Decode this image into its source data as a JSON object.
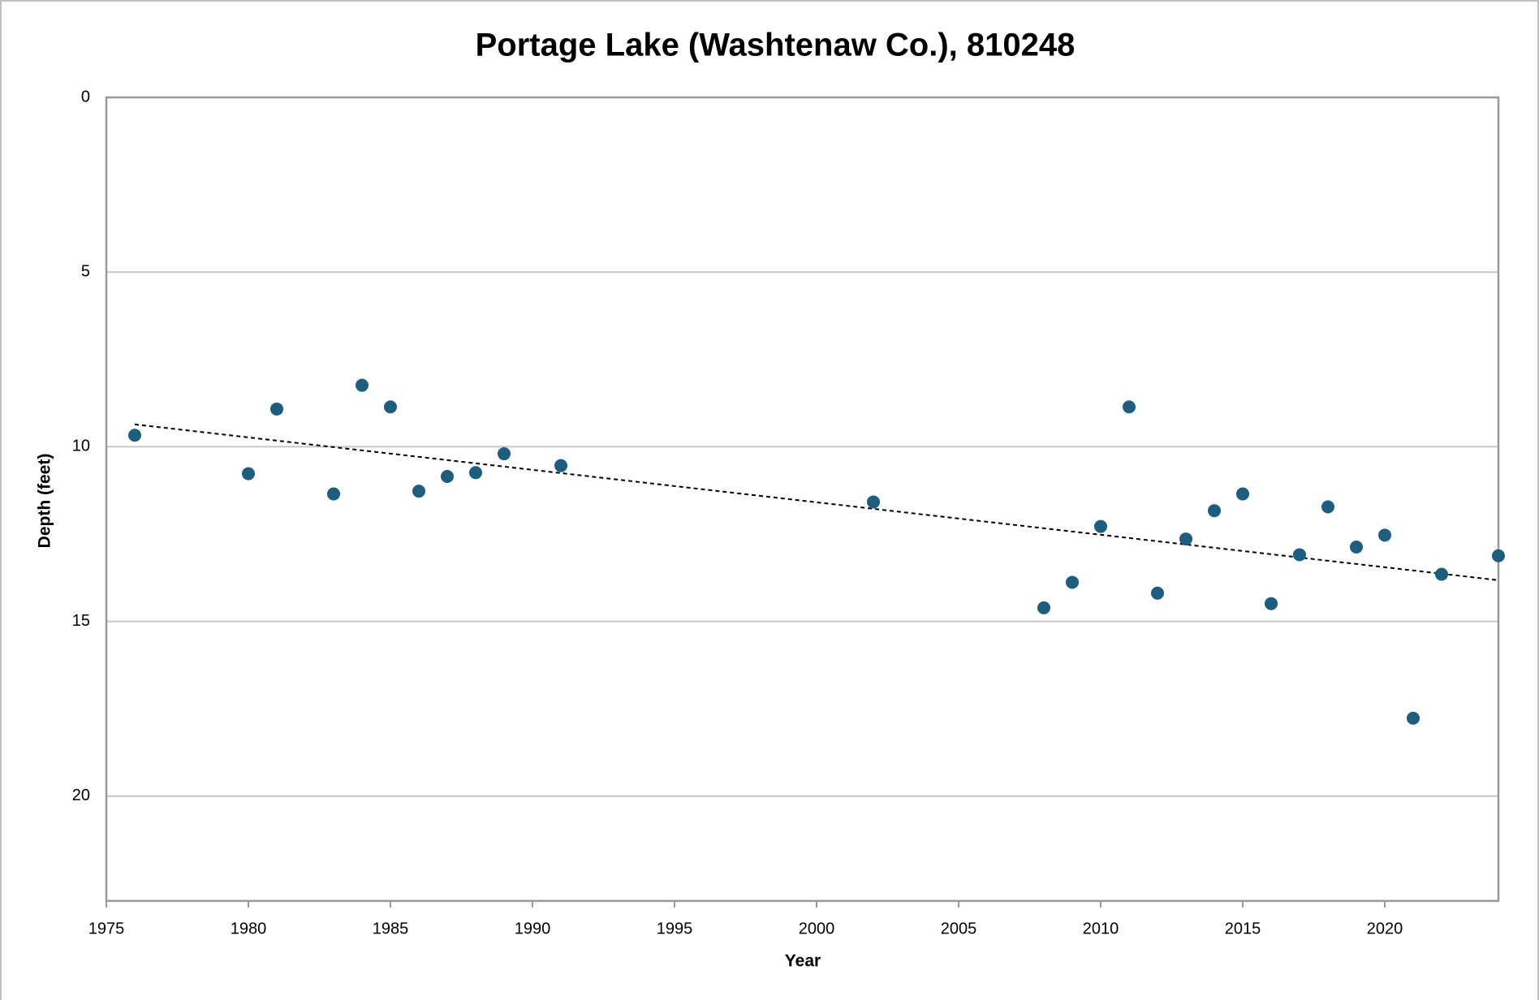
{
  "chart_data": {
    "type": "scatter",
    "title": "Portage Lake (Washtenaw Co.), 810248",
    "x_label": "Year",
    "y_label": "Depth (feet)",
    "x": [
      1976,
      1980,
      1981,
      1983,
      1984,
      1985,
      1986,
      1987,
      1988,
      1989,
      1991,
      2002,
      2008,
      2009,
      2010,
      2011,
      2012,
      2013,
      2014,
      2015,
      2016,
      2017,
      2018,
      2019,
      2020,
      2021,
      2022,
      2024
    ],
    "values": [
      9.67,
      10.77,
      8.92,
      11.35,
      8.24,
      8.86,
      11.27,
      10.85,
      10.74,
      10.2,
      10.54,
      11.58,
      14.61,
      13.88,
      12.28,
      8.86,
      14.19,
      12.64,
      11.83,
      11.35,
      14.49,
      13.09,
      11.72,
      12.87,
      12.53,
      17.77,
      13.65,
      13.12
    ],
    "color": "#1b5e80",
    "trendline": {
      "x": [
        1976,
        2024
      ],
      "values": [
        9.36,
        13.82
      ],
      "color": "#000000"
    },
    "xlim": [
      1975,
      2024
    ],
    "xticks": [
      1975,
      1980,
      1985,
      1990,
      1995,
      2000,
      2005,
      2010,
      2015,
      2020
    ],
    "ylim": [
      0,
      23
    ],
    "yticks": [
      0,
      5,
      10,
      15,
      20
    ],
    "y_inverted": true,
    "grid": true
  }
}
